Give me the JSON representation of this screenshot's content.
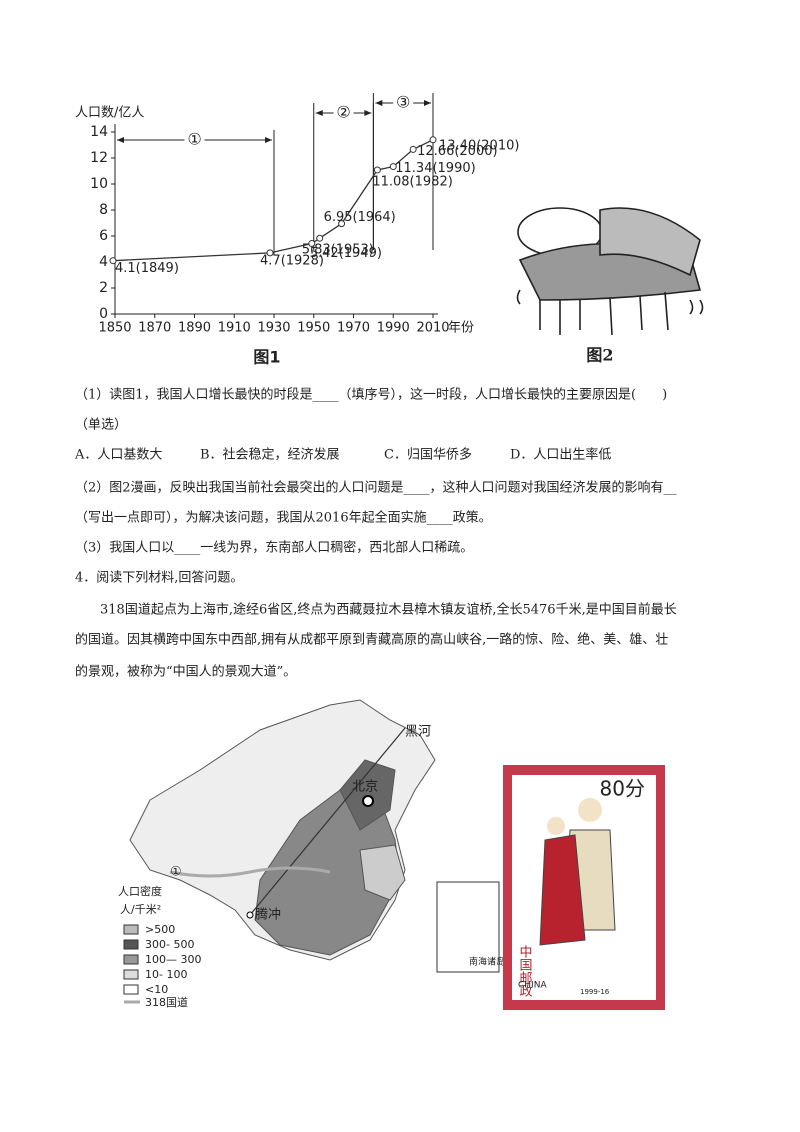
{
  "chart_data": {
    "type": "line",
    "y_label": "人口数/亿人",
    "x_label": "年份",
    "caption": "图1",
    "x": [
      1849,
      1928,
      1949,
      1953,
      1964,
      1982,
      1990,
      2000,
      2010
    ],
    "values": [
      4.1,
      4.7,
      5.42,
      5.83,
      6.95,
      11.08,
      11.34,
      12.66,
      13.4
    ],
    "value_labels": [
      "4.1(1849)",
      "4.7(1928)",
      "5.42(1949)",
      "5.83(1953)",
      "6.95(1964)",
      "11.08(1982)",
      "11.34(1990)",
      "12.66(2000)",
      "13.40(2010)"
    ],
    "color": "#333333",
    "xlim": [
      1850,
      2010
    ],
    "xticks": [
      1850,
      1870,
      1890,
      1910,
      1930,
      1950,
      1970,
      1990,
      2010
    ],
    "ylim": [
      0,
      14
    ],
    "yticks": [
      0,
      2,
      4,
      6,
      8,
      10,
      12,
      14
    ],
    "annotations": [
      {
        "label": "①",
        "x": [
          1850,
          1930
        ]
      },
      {
        "label": "②",
        "x": [
          1950,
          1980
        ]
      },
      {
        "label": "③",
        "x": [
          1980,
          2010
        ]
      }
    ]
  },
  "figure2": {
    "caption": "图2"
  },
  "question3": {
    "q1": "（1）读图1，我国人口增长最快的时段是____（填序号），这一时段，人口增长最快的主要原因是(　　)",
    "q1_note": "（单选）",
    "options": [
      "A．人口基数大",
      "B．社会稳定，经济发展",
      "C．归国华侨多",
      "D．人口出生率低"
    ],
    "q2_line1": "（2）图2漫画，反映出我国当前社会最突出的人口问题是____，这种人口问题对我国经济发展的影响有__",
    "q2_line2": "（写出一点即可），为解决该问题，我国从2016年起全面实施____政策。",
    "q3": "（3）我国人口以____一线为界，东南部人口稠密，西北部人口稀疏。"
  },
  "question4": {
    "title": "4．阅读下列材料,回答问题。",
    "material": [
      "318国道起点为上海市,途经6省区,终点为西藏聂拉木县樟木镇友谊桥,全长5476千米,是中国目前最长",
      "的国道。因其横跨中国东中西部,拥有从成都平原到青藏高原的高山峡谷,一路的惊、险、绝、美、雄、壮",
      "的景观，被称为“中国人的景观大道”。"
    ]
  },
  "map": {
    "places": [
      "黑河",
      "北京",
      "腾冲"
    ],
    "marker": "①",
    "inset": "南海诸岛",
    "legend_title": "人口密度",
    "legend_unit": "人/千米²",
    "legend": [
      ">500",
      "300- 500",
      "100— 300",
      "10- 100",
      "<10",
      "318国道"
    ]
  },
  "stamp": {
    "value": "80分",
    "country": "中国邮政",
    "country_en": "CHINA",
    "code": "1999-16"
  }
}
